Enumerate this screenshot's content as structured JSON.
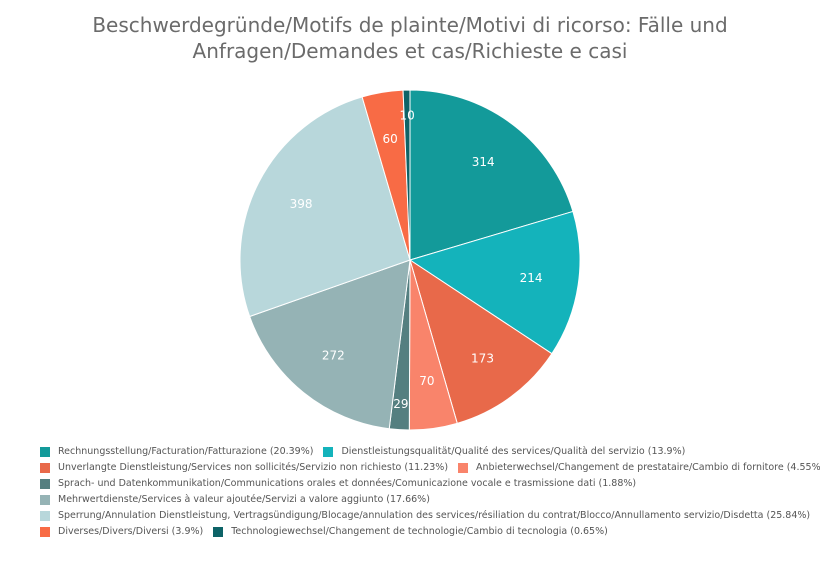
{
  "chart_data": {
    "type": "pie",
    "title": "Beschwerdegründe/Motifs de plainte/Motivi di ricorso: Fälle und Anfragen/Demandes et cas/Richieste e casi",
    "legend_position": "bottom",
    "slices": [
      {
        "label": "Rechnungsstellung/Facturation/Fatturazione",
        "value": 314,
        "percent": "20.39%",
        "color": "#139a9a"
      },
      {
        "label": "Dienstleistungsqualität/Qualité des services/Qualità del servizio",
        "value": 214,
        "percent": "13.9%",
        "color": "#14b3bb"
      },
      {
        "label": "Unverlangte Dienstleistung/Services non sollicités/Servizio non richiesto",
        "value": 173,
        "percent": "11.23%",
        "color": "#e8694a"
      },
      {
        "label": "Anbieterwechsel/Changement de prestataire/Cambio di fornitore",
        "value": 70,
        "percent": "4.55%",
        "color": "#f9846b"
      },
      {
        "label": "Sprach- und Datenkommunikation/Communications orales et données/Comunicazione vocale e trasmissione dati",
        "value": 29,
        "percent": "1.88%",
        "color": "#547f80"
      },
      {
        "label": "Mehrwertdienste/Services à valeur ajoutée/Servizi a valore aggiunto",
        "value": 272,
        "percent": "17.66%",
        "color": "#95b3b5"
      },
      {
        "label": "Sperrung/Annulation Dienstleistung, Vertragsündigung/Blocage/annulation des services/résiliation du contrat/Blocco/Annullamento servizio/Disdetta",
        "value": 398,
        "percent": "25.84%",
        "color": "#b8d7db"
      },
      {
        "label": "Diverses/Divers/Diversi",
        "value": 60,
        "percent": "3.9%",
        "color": "#f86b45"
      },
      {
        "label": "Technologiewechsel/Changement de technologie/Cambio di tecnologia",
        "value": 10,
        "percent": "0.65%",
        "color": "#0d6367"
      }
    ]
  }
}
